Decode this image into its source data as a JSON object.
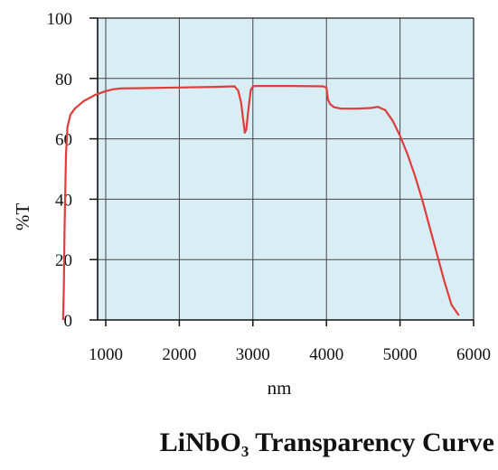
{
  "chart_data": {
    "type": "line",
    "title_main": "LiNbO",
    "title_subscript": "3",
    "title_rest": " Transparency Curve",
    "xlabel": "nm",
    "ylabel": "%T",
    "xlim": [
      0,
      6000
    ],
    "ylim": [
      0,
      100
    ],
    "x_ticks": [
      1000,
      2000,
      3000,
      4000,
      5000,
      6000
    ],
    "y_ticks": [
      0,
      20,
      40,
      60,
      80,
      100
    ],
    "grid": true,
    "colors": {
      "background": "#d9edf5",
      "grid": "#444444",
      "line": "#e03c3c"
    },
    "series": [
      {
        "x": [
          420,
          430,
          440,
          460,
          480,
          520,
          580,
          700,
          850,
          1000,
          1100,
          1200,
          1500,
          2000,
          2500,
          2750,
          2800,
          2840,
          2870,
          2890,
          2910,
          2940,
          2970,
          3000,
          3050,
          3500,
          3950,
          4000,
          4020,
          4050,
          4100,
          4200,
          4400,
          4600,
          4700,
          4800,
          4900,
          5000,
          5100,
          5200,
          5300,
          5400,
          5500,
          5600,
          5700,
          5800
        ],
        "y": [
          0,
          10,
          30,
          55,
          64,
          68,
          70,
          72.5,
          74.5,
          75.8,
          76.4,
          76.7,
          76.8,
          77,
          77.2,
          77.4,
          76,
          72,
          66,
          62,
          63,
          70,
          76,
          77.4,
          77.5,
          77.5,
          77.4,
          77,
          73,
          71.5,
          70.5,
          70,
          70,
          70.2,
          70.6,
          69.5,
          66,
          61,
          55,
          48,
          40,
          31,
          22,
          13,
          5,
          1.5
        ]
      }
    ]
  }
}
